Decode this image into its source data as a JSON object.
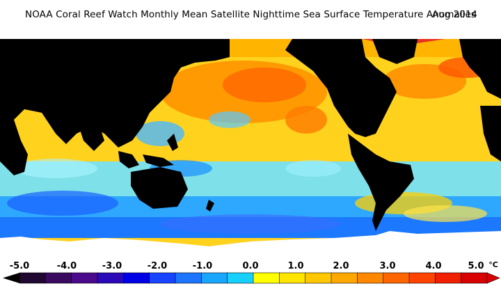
{
  "header": {
    "title": "NOAA Coral Reef Watch Monthly Mean Satellite Nighttime Sea Surface Temperature Anomalies",
    "date": "Aug 2014"
  },
  "map": {
    "projection": "global equirectangular, centered on Pacific",
    "land_color": "#000000",
    "ice_color": "#ffffff"
  },
  "colorbar": {
    "ticks": [
      "-5.0",
      "-4.0",
      "-3.0",
      "-2.0",
      "-1.0",
      "0.0",
      "1.0",
      "2.0",
      "3.0",
      "4.0",
      "5.0"
    ],
    "unit": "°C",
    "colors": [
      "#200830",
      "#3a0a60",
      "#4b0a8c",
      "#2a0ab8",
      "#0000e6",
      "#1744ff",
      "#1c74ff",
      "#19a6ff",
      "#18d0ff",
      "#ffff00",
      "#ffe500",
      "#ffc800",
      "#ffa800",
      "#ff8800",
      "#ff6600",
      "#ff4400",
      "#f02000",
      "#d80000"
    ]
  }
}
